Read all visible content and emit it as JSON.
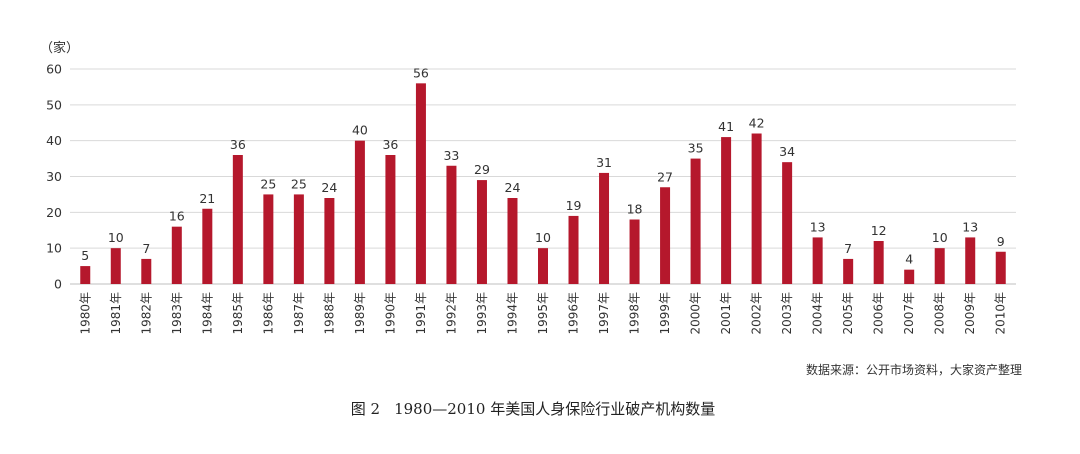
{
  "chart_data": {
    "type": "bar",
    "unit_label": "（家）",
    "categories": [
      "1980年",
      "1981年",
      "1982年",
      "1983年",
      "1984年",
      "1985年",
      "1986年",
      "1987年",
      "1988年",
      "1989年",
      "1990年",
      "1991年",
      "1992年",
      "1993年",
      "1994年",
      "1995年",
      "1996年",
      "1997年",
      "1998年",
      "1999年",
      "2000年",
      "2001年",
      "2002年",
      "2003年",
      "2004年",
      "2005年",
      "2006年",
      "2007年",
      "2008年",
      "2009年",
      "2010年"
    ],
    "values": [
      5,
      10,
      7,
      16,
      21,
      36,
      25,
      25,
      24,
      40,
      36,
      56,
      33,
      29,
      24,
      10,
      19,
      31,
      18,
      27,
      35,
      41,
      42,
      34,
      13,
      7,
      12,
      4,
      10,
      13,
      9
    ],
    "ylim": [
      0,
      60
    ],
    "yticks": [
      0,
      10,
      20,
      30,
      40,
      50,
      60
    ],
    "grid": true,
    "legend": "none",
    "bar_color": "#b5182c",
    "grid_color": "#d9d9d9"
  },
  "source_note": "数据来源：公开市场资料，大家资产整理",
  "caption": {
    "figure_no": "图 2",
    "title": "1980—2010 年美国人身保险行业破产机构数量"
  }
}
